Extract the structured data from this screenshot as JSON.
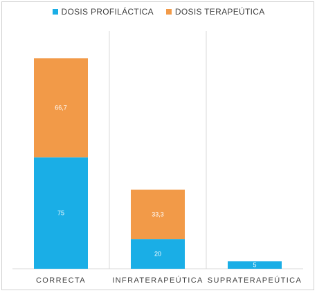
{
  "chart_data": {
    "type": "bar",
    "stacked": true,
    "categories": [
      "CORRECTA",
      "INFRATERAPEÚTICA",
      "SUPRATERAPEÚTICA"
    ],
    "series": [
      {
        "name": "DOSIS PROFILÁCTICA",
        "values": [
          75,
          20,
          5
        ],
        "labels": [
          "75",
          "20",
          "5"
        ],
        "color": "#1aaee6"
      },
      {
        "name": "DOSIS TERAPEÚTICA",
        "values": [
          66.7,
          33.3,
          0
        ],
        "labels": [
          "66,7",
          "33,3",
          ""
        ],
        "color": "#f29a48"
      }
    ],
    "ylim": [
      0,
      160
    ],
    "grid": false,
    "legend_position": "top-center",
    "title": "",
    "xlabel": "",
    "ylabel": ""
  }
}
